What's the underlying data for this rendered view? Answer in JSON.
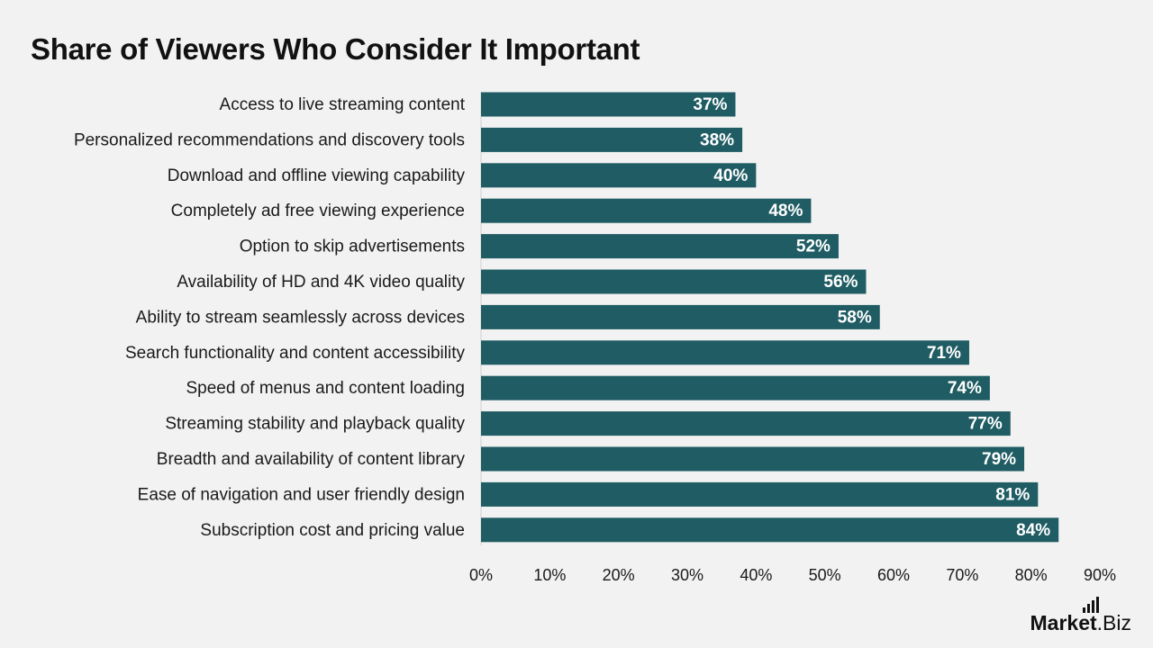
{
  "header": {
    "title": "Share of Viewers Who Consider It Important"
  },
  "chart_data": {
    "type": "bar",
    "orientation": "horizontal",
    "title": "Share of Viewers Who Consider It Important",
    "categories": [
      "Access to live streaming content",
      "Personalized recommendations and discovery tools",
      "Download and offline viewing capability",
      "Completely ad free viewing experience",
      "Option to skip advertisements",
      "Availability of HD and 4K video quality",
      "Ability to stream seamlessly across devices",
      "Search functionality and content accessibility",
      "Speed of menus and content loading",
      "Streaming stability and playback quality",
      "Breadth and availability of content library",
      "Ease of navigation and user friendly design",
      "Subscription cost and pricing value"
    ],
    "values": [
      37,
      38,
      40,
      48,
      52,
      56,
      58,
      71,
      74,
      77,
      79,
      81,
      84
    ],
    "value_labels": [
      "37%",
      "38%",
      "40%",
      "48%",
      "52%",
      "56%",
      "58%",
      "71%",
      "74%",
      "77%",
      "79%",
      "81%",
      "84%"
    ],
    "xlim": [
      0,
      90
    ],
    "x_ticks": [
      "0%",
      "10%",
      "20%",
      "30%",
      "40%",
      "50%",
      "60%",
      "70%",
      "80%",
      "90%"
    ],
    "grid": false,
    "legend": "none",
    "bar_color": "#1f5c63"
  },
  "branding": {
    "logo_left": "Market",
    "logo_right": ".Biz"
  },
  "colors": {
    "background": "#f2f2f2",
    "bar": "#1f5c63",
    "text": "#1a1a1a"
  }
}
